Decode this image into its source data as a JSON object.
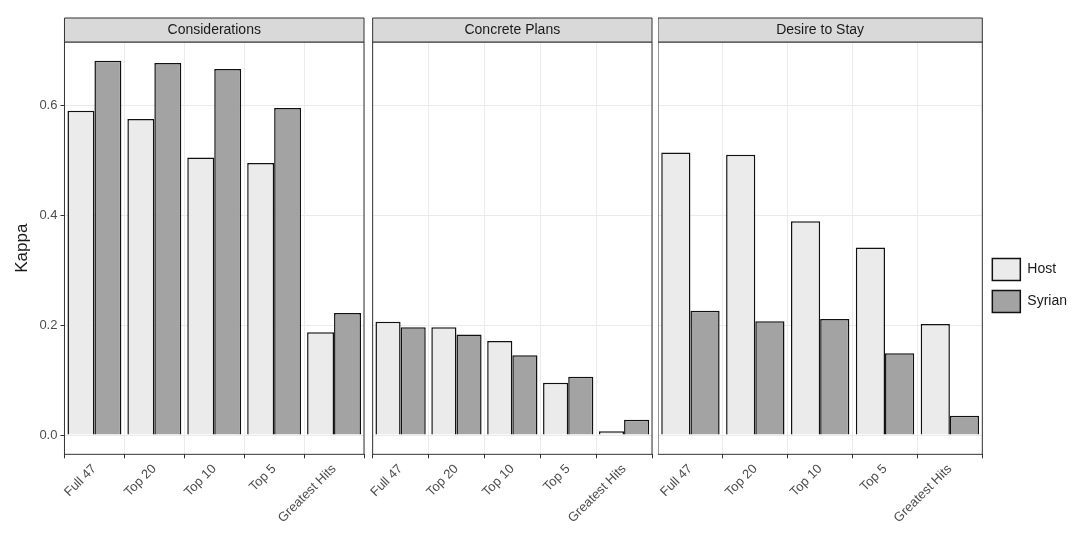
{
  "chart_data": [
    {
      "type": "bar",
      "title": "Considerations",
      "ylabel": "Kappa",
      "categories": [
        "Full 47",
        "Top 20",
        "Top 10",
        "Top 5",
        "Greatest Hits"
      ],
      "series": [
        {
          "color": "#ebebeb",
          "values": [
            0.59,
            0.575,
            0.505,
            0.495,
            0.187
          ]
        },
        {
          "color": "#a3a3a3",
          "values": [
            0.681,
            0.677,
            0.666,
            0.595,
            0.222
          ]
        }
      ],
      "ylim": [
        -0.035,
        0.715
      ],
      "yticks": [
        {
          "value": 0,
          "label": "0.0"
        },
        {
          "value": 0.2,
          "label": "0.2"
        },
        {
          "value": 0.4,
          "label": "0.4"
        },
        {
          "value": 0.6,
          "label": "0.6"
        }
      ],
      "grid": true
    },
    {
      "type": "bar",
      "title": "Concrete Plans",
      "categories": [
        "Full 47",
        "Top 20",
        "Top 10",
        "Top 5",
        "Greatest Hits"
      ],
      "series": [
        {
          "color": "#ebebeb",
          "values": [
            0.206,
            0.196,
            0.171,
            0.095,
            0.007
          ]
        },
        {
          "color": "#a3a3a3",
          "values": [
            0.196,
            0.183,
            0.145,
            0.106,
            0.028
          ]
        }
      ],
      "ylim": [
        -0.035,
        0.715
      ],
      "yticks": [
        0,
        0.2,
        0.4,
        0.6
      ],
      "grid": true,
      "tick_labels": "x"
    },
    {
      "type": "bar",
      "title": "Desire to Stay",
      "categories": [
        "Full 47",
        "Top 20",
        "Top 10",
        "Top 5",
        "Greatest Hits"
      ],
      "series": [
        {
          "name": "Host",
          "color": "#ebebeb",
          "values": [
            0.514,
            0.51,
            0.389,
            0.341,
            0.202
          ]
        },
        {
          "name": "Syrian",
          "color": "#a3a3a3",
          "values": [
            0.226,
            0.207,
            0.211,
            0.149,
            0.035
          ]
        }
      ],
      "ylim": [
        -0.035,
        0.715
      ],
      "yticks": [
        0,
        0.2,
        0.4,
        0.6
      ],
      "grid": true,
      "tick_labels": "x",
      "legend": "right"
    }
  ]
}
